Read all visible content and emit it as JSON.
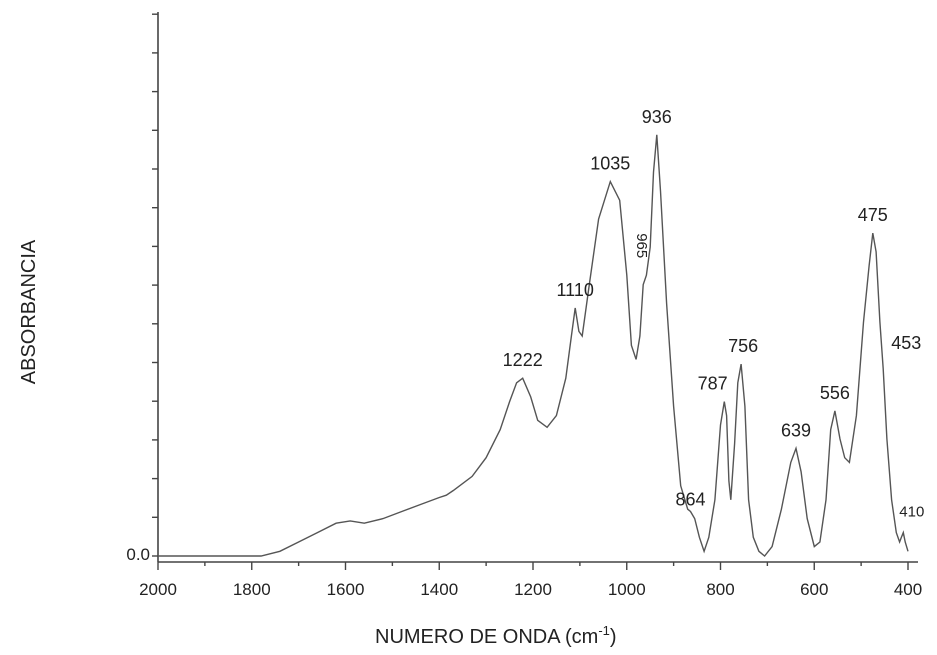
{
  "chart_data": {
    "type": "line",
    "title": "",
    "xlabel": "NUMERO DE ONDA (cm",
    "xlabel_sup": "-1",
    "xlabel_close": ")",
    "ylabel": "ABSORBANCIA",
    "xlim": [
      2000,
      400
    ],
    "x_reversed": true,
    "ylim": [
      0,
      1
    ],
    "grid": false,
    "x_ticks": [
      "2000",
      "1800",
      "1600",
      "1400",
      "1200",
      "1000",
      "800",
      "600",
      "400"
    ],
    "y_ticks": [
      "0.0"
    ],
    "series": [
      {
        "x": [
          2000,
          1780,
          1740,
          1700,
          1660,
          1620,
          1590,
          1560,
          1520,
          1480,
          1440,
          1400,
          1385,
          1370,
          1330,
          1300,
          1270,
          1250,
          1235,
          1222,
          1205,
          1190,
          1170,
          1150,
          1130,
          1118,
          1110,
          1102,
          1095,
          1080,
          1060,
          1035,
          1015,
          1000,
          990,
          980,
          972,
          965,
          958,
          950,
          943,
          936,
          928,
          915,
          900,
          885,
          870,
          864,
          855,
          845,
          835,
          825,
          812,
          800,
          792,
          787,
          782,
          778,
          770,
          763,
          756,
          748,
          740,
          730,
          718,
          706,
          690,
          670,
          650,
          639,
          628,
          615,
          600,
          588,
          575,
          565,
          556,
          545,
          535,
          525,
          510,
          495,
          483,
          475,
          468,
          460,
          453,
          445,
          435,
          425,
          418,
          414,
          410,
          406,
          400
        ],
        "y": [
          0.0,
          0.0,
          0.01,
          0.03,
          0.05,
          0.07,
          0.075,
          0.07,
          0.08,
          0.095,
          0.11,
          0.125,
          0.13,
          0.14,
          0.17,
          0.21,
          0.27,
          0.33,
          0.37,
          0.38,
          0.34,
          0.29,
          0.275,
          0.3,
          0.38,
          0.47,
          0.53,
          0.48,
          0.47,
          0.58,
          0.72,
          0.8,
          0.76,
          0.6,
          0.45,
          0.42,
          0.47,
          0.58,
          0.6,
          0.66,
          0.82,
          0.9,
          0.78,
          0.54,
          0.32,
          0.15,
          0.1,
          0.095,
          0.08,
          0.04,
          0.01,
          0.04,
          0.12,
          0.28,
          0.33,
          0.3,
          0.16,
          0.12,
          0.24,
          0.37,
          0.41,
          0.32,
          0.12,
          0.04,
          0.01,
          0.0,
          0.02,
          0.1,
          0.2,
          0.23,
          0.18,
          0.08,
          0.02,
          0.03,
          0.12,
          0.27,
          0.31,
          0.25,
          0.21,
          0.2,
          0.3,
          0.5,
          0.62,
          0.69,
          0.65,
          0.5,
          0.4,
          0.25,
          0.12,
          0.05,
          0.03,
          0.04,
          0.05,
          0.03,
          0.01
        ]
      }
    ],
    "annotations": [
      {
        "text": "1222",
        "x": 1222,
        "y": 0.38
      },
      {
        "text": "1110",
        "x": 1110,
        "y": 0.53
      },
      {
        "text": "1035",
        "x": 1035,
        "y": 0.8
      },
      {
        "text": "965",
        "x": 965,
        "y": 0.6,
        "rotated": true
      },
      {
        "text": "936",
        "x": 936,
        "y": 0.9
      },
      {
        "text": "864",
        "x": 864,
        "y": 0.095
      },
      {
        "text": "787",
        "x": 787,
        "y": 0.33
      },
      {
        "text": "756",
        "x": 756,
        "y": 0.41
      },
      {
        "text": "639",
        "x": 639,
        "y": 0.23
      },
      {
        "text": "556",
        "x": 556,
        "y": 0.31
      },
      {
        "text": "475",
        "x": 475,
        "y": 0.69
      },
      {
        "text": "453",
        "x": 453,
        "y": 0.4
      },
      {
        "text": "410",
        "x": 410,
        "y": 0.05
      }
    ]
  }
}
